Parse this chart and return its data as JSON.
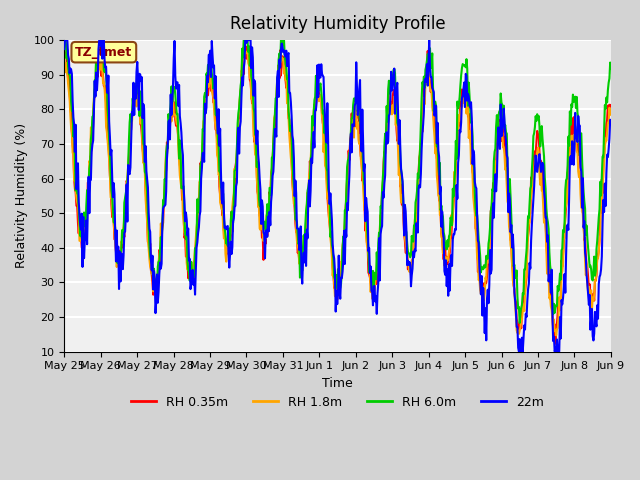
{
  "title": "Relativity Humidity Profile",
  "xlabel": "Time",
  "ylabel": "Relativity Humidity (%)",
  "ylim": [
    10,
    100
  ],
  "yticks": [
    10,
    20,
    30,
    40,
    50,
    60,
    70,
    80,
    90,
    100
  ],
  "annotation_text": "TZ_tmet",
  "annotation_color": "#8B0000",
  "annotation_bg": "#FFFF99",
  "annotation_border": "#8B4513",
  "colors": {
    "RH 0.35m": "#FF0000",
    "RH 1.8m": "#FFA500",
    "RH 6.0m": "#00CC00",
    "22m": "#0000FF"
  },
  "legend_labels": [
    "RH 0.35m",
    "RH 1.8m",
    "RH 6.0m",
    "22m"
  ],
  "xtick_labels": [
    "May 25",
    "May 26",
    "May 27",
    "May 28",
    "May 29",
    "May 30",
    "May 31",
    "Jun 1",
    "Jun 2",
    "Jun 3",
    "Jun 4",
    "Jun 5",
    "Jun 6",
    "Jun 7",
    "Jun 8",
    "Jun 9"
  ],
  "num_days": 15,
  "linewidth": 1.5
}
